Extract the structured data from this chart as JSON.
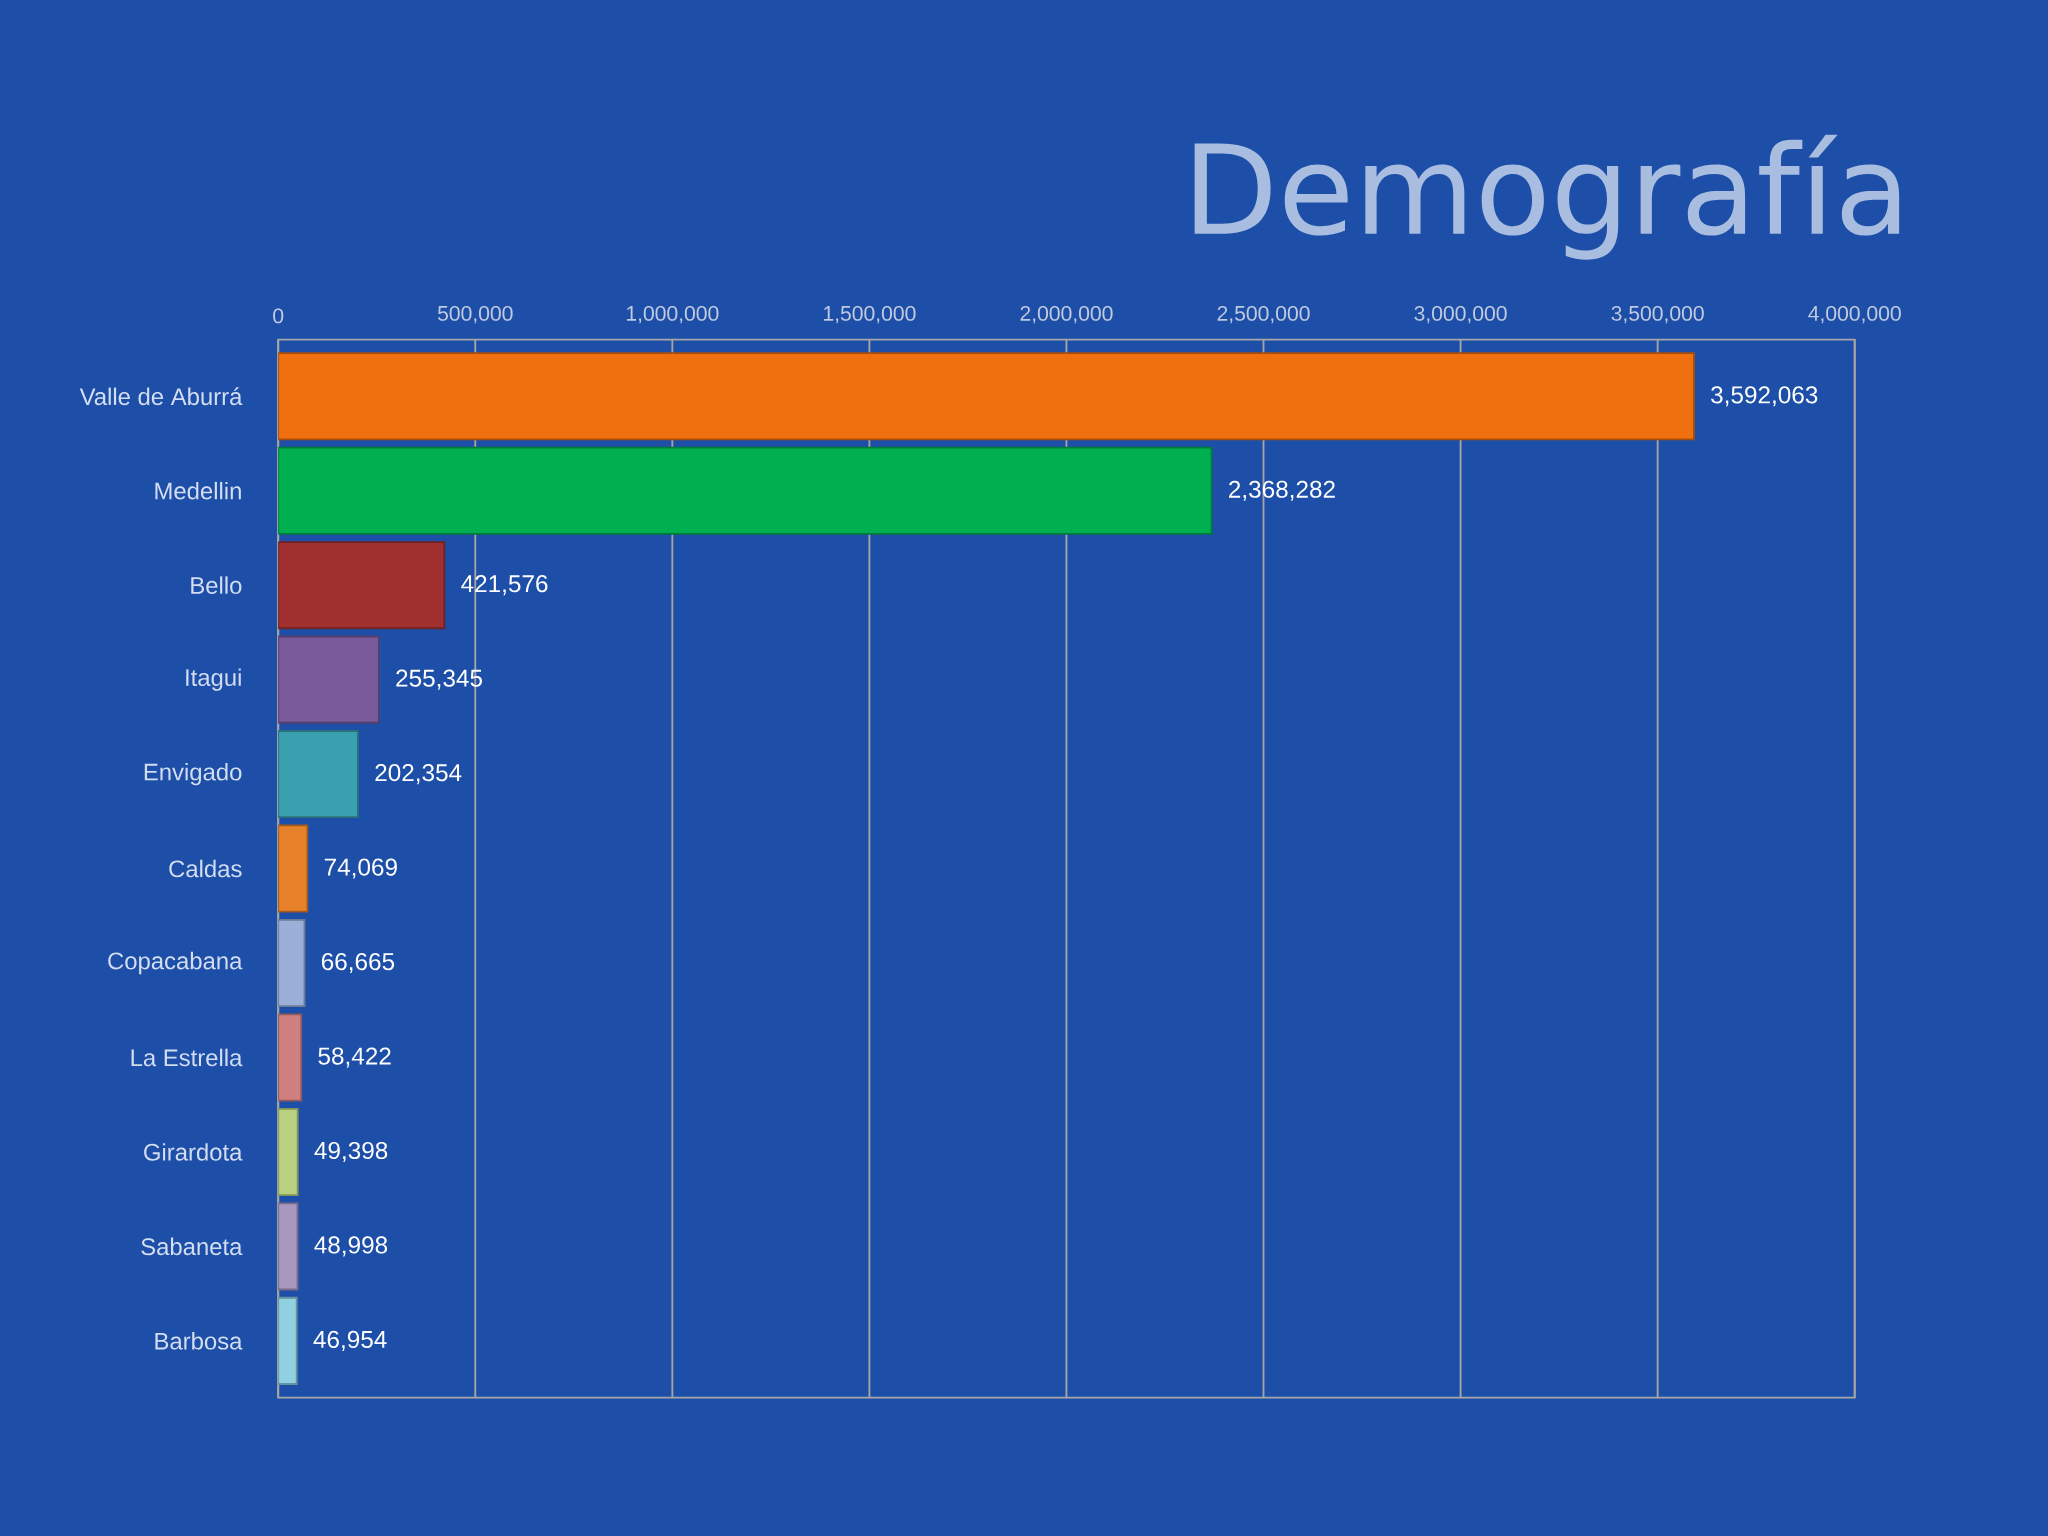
{
  "chart_data": {
    "type": "bar",
    "orientation": "horizontal",
    "title": "Demografía",
    "categories": [
      "Valle de Aburrá",
      "Medellin",
      "Bello",
      "Itagui",
      "Envigado",
      "Caldas",
      "Copacabana",
      "La Estrella",
      "Girardota",
      "Sabaneta",
      "Barbosa"
    ],
    "values": [
      3592063,
      2368282,
      421576,
      255345,
      202354,
      74069,
      66665,
      58422,
      49398,
      48998,
      46954
    ],
    "value_labels": [
      "3,592,063",
      "2,368,282",
      "421,576",
      "255,345",
      "202,354",
      "74,069",
      "66,665",
      "58,422",
      "49,398",
      "48,998",
      "46,954"
    ],
    "colors": [
      "#f07010",
      "#00b050",
      "#a03030",
      "#7a5a9a",
      "#3aa0b0",
      "#e8822a",
      "#9ab0d8",
      "#d08080",
      "#b8d080",
      "#a898c0",
      "#90d0e0"
    ],
    "xlim": [
      0,
      4000000
    ],
    "xticks": [
      {
        "value": 0,
        "label": "0"
      },
      {
        "value": 500000,
        "label": "500,000"
      },
      {
        "value": 1000000,
        "label": "1,000,000"
      },
      {
        "value": 1500000,
        "label": "1,500,000"
      },
      {
        "value": 2000000,
        "label": "2,000,000"
      },
      {
        "value": 2500000,
        "label": "2,500,000"
      },
      {
        "value": 3000000,
        "label": "3,000,000"
      },
      {
        "value": 3500000,
        "label": "3,500,000"
      },
      {
        "value": 4000000,
        "label": "4,000,000"
      }
    ],
    "grid": "x"
  }
}
